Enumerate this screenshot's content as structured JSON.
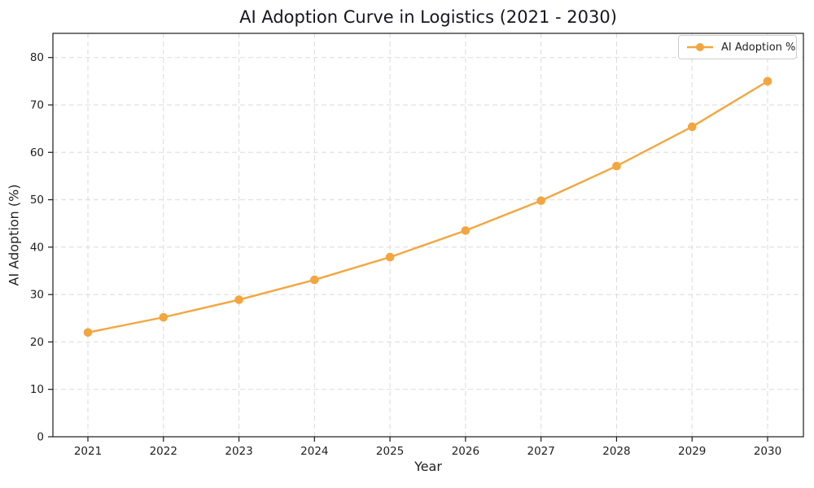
{
  "chart_data": {
    "type": "line",
    "title": "AI Adoption Curve in Logistics (2021 - 2030)",
    "xlabel": "Year",
    "ylabel": "AI Adoption (%)",
    "x": [
      2021,
      2022,
      2023,
      2024,
      2025,
      2026,
      2027,
      2028,
      2029,
      2030
    ],
    "series": [
      {
        "name": "AI Adoption %",
        "values": [
          22.0,
          25.2,
          28.9,
          33.1,
          37.9,
          43.5,
          49.8,
          57.1,
          65.4,
          75.0
        ],
        "color": "#F3A63F",
        "marker": "circle"
      }
    ],
    "ylim": [
      0,
      85.1
    ],
    "yticks": [
      0,
      10,
      20,
      30,
      40,
      50,
      60,
      70,
      80
    ],
    "grid": true,
    "grid_style": "dashed",
    "grid_color": "#DBDBDB",
    "spine_color": "#1a1a1a",
    "tick_label_color": "#1f1f1f",
    "background": "#FFFFFF",
    "legend": {
      "position": "top-right",
      "entries": [
        "AI Adoption %"
      ]
    }
  }
}
